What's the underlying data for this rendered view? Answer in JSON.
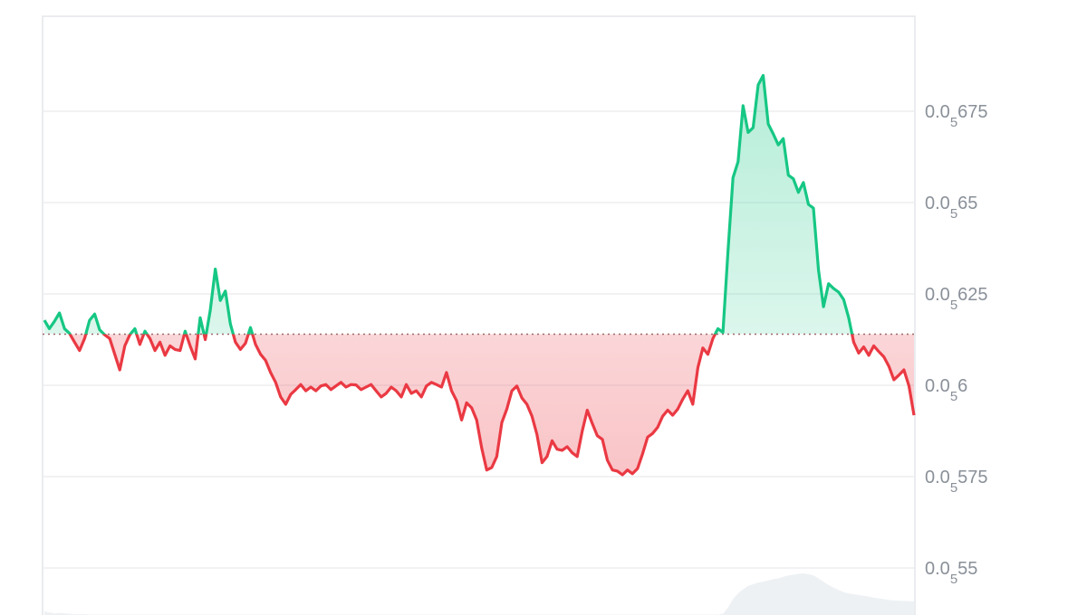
{
  "chart_data": {
    "type": "area",
    "title": "",
    "xlabel": "",
    "ylabel": "",
    "ylim": [
      5.36e-07,
      7e-07
    ],
    "grid": true,
    "baseline": 6.14e-07,
    "colors": {
      "above_line": "#16c784",
      "below_line": "#ea3943",
      "above_fill": "#16c784",
      "below_fill": "#ea3943",
      "grid": "#e9ebee",
      "baseline": "#a0686c",
      "volume": "#eef1f4",
      "tick_text": "#8a9099"
    },
    "y_ticks": [
      {
        "value": 6.75e-07,
        "prefix": "0.0",
        "sub": "5",
        "suffix": "675"
      },
      {
        "value": 6.5e-07,
        "prefix": "0.0",
        "sub": "5",
        "suffix": "65"
      },
      {
        "value": 6.25e-07,
        "prefix": "0.0",
        "sub": "5",
        "suffix": "625"
      },
      {
        "value": 6e-07,
        "prefix": "0.0",
        "sub": "5",
        "suffix": "6"
      },
      {
        "value": 5.75e-07,
        "prefix": "0.0",
        "sub": "5",
        "suffix": "575"
      },
      {
        "value": 5.5e-07,
        "prefix": "0.0",
        "sub": "5",
        "suffix": "55"
      }
    ],
    "series": [
      {
        "values": [
          0.6178,
          0.6155,
          0.6175,
          0.6198,
          0.6155,
          0.6142,
          0.6118,
          0.6095,
          0.6128,
          0.6178,
          0.6195,
          0.6152,
          0.6138,
          0.6128,
          0.6085,
          0.6042,
          0.6108,
          0.6138,
          0.6155,
          0.6112,
          0.6148,
          0.6128,
          0.6095,
          0.6118,
          0.6082,
          0.6108,
          0.6098,
          0.6095,
          0.6148,
          0.6108,
          0.6072,
          0.6185,
          0.6125,
          0.6205,
          0.6318,
          0.6232,
          0.6258,
          0.6168,
          0.6118,
          0.6098,
          0.6115,
          0.6158,
          0.6112,
          0.6085,
          0.6068,
          0.6035,
          0.6008,
          0.5968,
          0.5948,
          0.5975,
          0.5988,
          0.6002,
          0.5985,
          0.5995,
          0.5985,
          0.5998,
          0.6002,
          0.5988,
          0.5998,
          0.6008,
          0.5995,
          0.6002,
          0.6001,
          0.5988,
          0.5995,
          0.6002,
          0.5985,
          0.5968,
          0.5978,
          0.5995,
          0.5985,
          0.5968,
          0.6002,
          0.5978,
          0.5985,
          0.5968,
          0.5998,
          0.6008,
          0.6002,
          0.5995,
          0.6035,
          0.5985,
          0.5958,
          0.5905,
          0.5952,
          0.5938,
          0.5905,
          0.5828,
          0.5768,
          0.5775,
          0.5805,
          0.5898,
          0.5935,
          0.5985,
          0.5998,
          0.5965,
          0.5948,
          0.5915,
          0.5865,
          0.5788,
          0.5805,
          0.5848,
          0.5825,
          0.5822,
          0.5832,
          0.5815,
          0.5805,
          0.5875,
          0.5932,
          0.5895,
          0.5862,
          0.5852,
          0.5795,
          0.5768,
          0.5765,
          0.5755,
          0.5768,
          0.5758,
          0.5772,
          0.5812,
          0.5858,
          0.5868,
          0.5885,
          0.5915,
          0.5932,
          0.5918,
          0.5935,
          0.5962,
          0.5985,
          0.5948,
          0.6048,
          0.6102,
          0.6085,
          0.6128,
          0.6155,
          0.6145,
          0.6368,
          0.6568,
          0.6612,
          0.6765,
          0.6692,
          0.6705,
          0.6822,
          0.6848,
          0.6715,
          0.6688,
          0.6658,
          0.6675,
          0.6575,
          0.6565,
          0.6528,
          0.6555,
          0.6495,
          0.6485,
          0.6315,
          0.6215,
          0.6278,
          0.6265,
          0.6255,
          0.6235,
          0.6185,
          0.6118,
          0.6088,
          0.6105,
          0.6082,
          0.6108,
          0.6092,
          0.6078,
          0.6052,
          0.6015,
          0.6028,
          0.6042,
          0.5998,
          0.5918
        ]
      }
    ],
    "volume": [
      0.09,
      0.06,
      0.04,
      0.05,
      0.04,
      0.03,
      0.02,
      0.02,
      0.02,
      0.01,
      0.01,
      0.01,
      0.01,
      0.01,
      0.01,
      0.01,
      0.01,
      0.01,
      0.01,
      0.01,
      0.01,
      0.01,
      0.01,
      0.01,
      0.01,
      0.01,
      0.01,
      0.01,
      0.01,
      0.01,
      0.01,
      0.01,
      0.01,
      0.01,
      0.01,
      0.01,
      0.01,
      0.01,
      0.01,
      0.01,
      0.01,
      0.01,
      0.01,
      0.01,
      0.01,
      0.01,
      0.01,
      0.01,
      0.01,
      0.01,
      0.01,
      0.01,
      0.01,
      0.01,
      0.01,
      0.01,
      0.01,
      0.01,
      0.01,
      0.01,
      0.01,
      0.01,
      0.01,
      0.01,
      0.01,
      0.01,
      0.01,
      0.01,
      0.01,
      0.01,
      0.01,
      0.01,
      0.01,
      0.01,
      0.01,
      0.01,
      0.01,
      0.01,
      0.01,
      0.01,
      0.01,
      0.01,
      0.01,
      0.01,
      0.01,
      0.01,
      0.01,
      0.01,
      0.01,
      0.01,
      0.01,
      0.01,
      0.01,
      0.01,
      0.01,
      0.01,
      0.01,
      0.01,
      0.01,
      0.01,
      0.01,
      0.01,
      0.01,
      0.01,
      0.01,
      0.01,
      0.01,
      0.01,
      0.01,
      0.01,
      0.01,
      0.01,
      0.01,
      0.01,
      0.01,
      0.01,
      0.01,
      0.01,
      0.01,
      0.01,
      0.01,
      0.01,
      0.01,
      0.01,
      0.01,
      0.01,
      0.01,
      0.01,
      0.01,
      0.01,
      0.01,
      0.01,
      0.01,
      0.01,
      0.01,
      0.03,
      0.18,
      0.38,
      0.52,
      0.62,
      0.7,
      0.74,
      0.78,
      0.8,
      0.83,
      0.86,
      0.88,
      0.92,
      0.95,
      0.97,
      0.99,
      1.0,
      0.98,
      0.95,
      0.88,
      0.8,
      0.72,
      0.66,
      0.6,
      0.55,
      0.52,
      0.5,
      0.48,
      0.46,
      0.44,
      0.42,
      0.4,
      0.38,
      0.36,
      0.35,
      0.34,
      0.34,
      0.33,
      0.33
    ]
  }
}
